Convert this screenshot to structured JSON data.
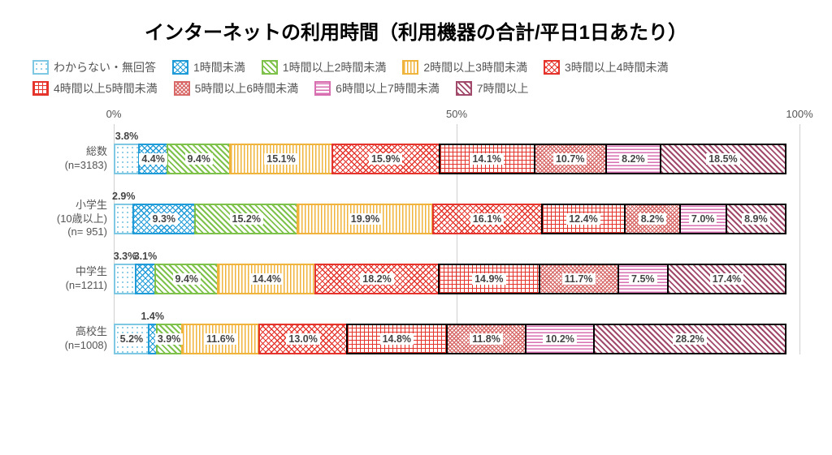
{
  "title": "インターネットの利用時間（利用機器の合計/平日1日あたり）",
  "chart": {
    "type": "stacked-bar-horizontal",
    "axis": {
      "ticks": [
        0,
        50,
        100
      ],
      "suffix": "%"
    },
    "series": [
      {
        "key": "s0",
        "label": "わからない・無回答",
        "color": "#7ec8e3",
        "pattern": "p-dot"
      },
      {
        "key": "s1",
        "label": "1時間未満",
        "color": "#1f9bd8",
        "pattern": "p-check"
      },
      {
        "key": "s2",
        "label": "1時間以上2時間未満",
        "color": "#7fc24b",
        "pattern": "p-diag"
      },
      {
        "key": "s3",
        "label": "2時間以上3時間未満",
        "color": "#f0b43c",
        "pattern": "p-vert"
      },
      {
        "key": "s4",
        "label": "3時間以上4時間未満",
        "color": "#e4342b",
        "pattern": "p-check"
      },
      {
        "key": "s5",
        "label": "4時間以上5時間未満",
        "color": "#e4342b",
        "pattern": "p-grid"
      },
      {
        "key": "s6",
        "label": "5時間以上6時間未満",
        "color": "#d86a6a",
        "pattern": "p-dense"
      },
      {
        "key": "s7",
        "label": "6時間以上7時間未満",
        "color": "#d86fb0",
        "pattern": "p-hori"
      },
      {
        "key": "s8",
        "label": "7時間以上",
        "color": "#a24a6c",
        "pattern": "p-diag"
      }
    ],
    "categories": [
      {
        "label_line1": "総数",
        "label_line2": "(n=3183)",
        "values": [
          3.8,
          4.4,
          9.4,
          15.1,
          15.9,
          14.1,
          10.7,
          8.2,
          18.5
        ],
        "above": {
          "0": "3.8%"
        }
      },
      {
        "label_line1": "小学生",
        "label_line2": "(10歳以上)",
        "label_line3": "(n= 951)",
        "values": [
          2.9,
          9.3,
          15.2,
          19.9,
          16.1,
          12.4,
          8.2,
          7.0,
          8.9
        ],
        "above": {
          "0": "2.9%"
        }
      },
      {
        "label_line1": "中学生",
        "label_line2": "(n=1211)",
        "values": [
          3.3,
          3.1,
          9.4,
          14.4,
          18.2,
          14.9,
          11.7,
          7.5,
          17.4
        ],
        "above": {
          "0": "3.3%",
          "1": "3.1%"
        }
      },
      {
        "label_line1": "高校生",
        "label_line2": "(n=1008)",
        "values": [
          5.2,
          1.4,
          3.9,
          11.6,
          13.0,
          14.8,
          11.8,
          10.2,
          28.2
        ],
        "above": {
          "1": "1.4%"
        }
      }
    ],
    "label_suffix": "%",
    "darkBorderLast": 4
  },
  "swatch_bg": "#ffffff"
}
